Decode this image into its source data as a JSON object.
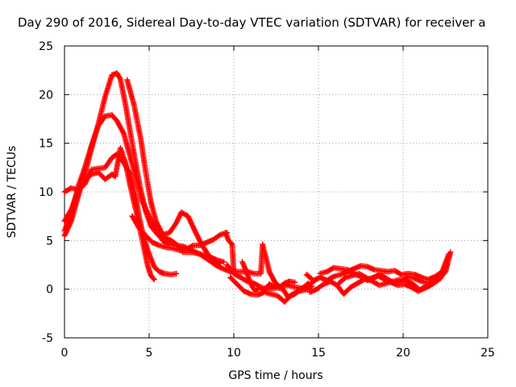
{
  "chart_data": {
    "type": "scatter",
    "title": "Day 290 of 2016, Sidereal Day-to-day VTEC variation (SDTVAR) for receiver a",
    "xlabel": "GPS time / hours",
    "ylabel": "SDTVAR / TECUs",
    "xlim": [
      0,
      25
    ],
    "ylim": [
      -5,
      25
    ],
    "x_ticks": [
      "0",
      "5",
      "10",
      "15",
      "20",
      "25"
    ],
    "y_ticks": [
      "-5",
      "0",
      "5",
      "10",
      "15",
      "20",
      "25"
    ],
    "grid": true,
    "marker": "plus",
    "color": "#ff0000",
    "series": [
      {
        "points": [
          [
            0.0,
            10.0
          ],
          [
            0.4,
            10.4
          ],
          [
            0.8,
            10.2
          ],
          [
            1.2,
            10.8
          ],
          [
            1.6,
            12.3
          ],
          [
            2.0,
            12.4
          ],
          [
            2.4,
            12.5
          ],
          [
            2.8,
            13.5
          ],
          [
            3.1,
            13.9
          ],
          [
            3.5,
            13.0
          ],
          [
            3.9,
            11.8
          ],
          [
            4.2,
            9.5
          ],
          [
            4.4,
            7.5
          ],
          [
            4.7,
            5.2
          ],
          [
            5.0,
            3.6
          ],
          [
            5.3,
            2.3
          ],
          [
            5.6,
            1.8
          ],
          [
            5.9,
            1.6
          ],
          [
            6.3,
            1.5
          ],
          [
            6.6,
            1.6
          ]
        ]
      },
      {
        "points": [
          [
            0.0,
            6.0
          ],
          [
            0.4,
            7.8
          ],
          [
            0.8,
            10.5
          ],
          [
            1.2,
            12.5
          ],
          [
            1.6,
            14.8
          ],
          [
            2.0,
            16.8
          ],
          [
            2.4,
            17.8
          ],
          [
            2.8,
            17.9
          ],
          [
            3.1,
            17.3
          ],
          [
            3.5,
            16.0
          ],
          [
            3.9,
            13.5
          ],
          [
            4.3,
            11.0
          ],
          [
            4.6,
            9.0
          ],
          [
            5.0,
            7.5
          ],
          [
            5.4,
            6.0
          ],
          [
            5.8,
            5.0
          ],
          [
            6.2,
            4.6
          ],
          [
            6.6,
            4.5
          ],
          [
            7.0,
            4.4
          ],
          [
            7.5,
            4.0
          ],
          [
            8.0,
            3.6
          ],
          [
            8.5,
            3.0
          ],
          [
            9.0,
            2.4
          ],
          [
            9.5,
            2.0
          ],
          [
            10.0,
            1.7
          ]
        ]
      },
      {
        "points": [
          [
            0.0,
            5.5
          ],
          [
            0.4,
            7.0
          ],
          [
            0.8,
            9.5
          ],
          [
            1.2,
            11.8
          ],
          [
            1.6,
            14.5
          ],
          [
            2.0,
            17.0
          ],
          [
            2.4,
            19.8
          ],
          [
            2.8,
            22.0
          ],
          [
            3.1,
            22.2
          ],
          [
            3.3,
            21.6
          ],
          [
            3.6,
            19.0
          ],
          [
            3.9,
            16.0
          ],
          [
            4.2,
            13.0
          ],
          [
            4.5,
            10.2
          ],
          [
            4.8,
            8.0
          ],
          [
            5.1,
            6.5
          ],
          [
            5.5,
            5.6
          ],
          [
            5.9,
            5.3
          ],
          [
            6.3,
            5.0
          ],
          [
            6.7,
            4.5
          ],
          [
            7.0,
            3.8
          ],
          [
            7.4,
            3.8
          ],
          [
            7.8,
            3.7
          ],
          [
            8.2,
            3.5
          ],
          [
            8.6,
            3.3
          ],
          [
            9.0,
            3.0
          ],
          [
            9.4,
            2.8
          ]
        ]
      },
      {
        "points": [
          [
            0.0,
            7.0
          ],
          [
            0.4,
            8.2
          ],
          [
            0.8,
            10.0
          ],
          [
            1.2,
            11.4
          ],
          [
            1.6,
            11.8
          ],
          [
            2.0,
            12.0
          ],
          [
            2.4,
            11.3
          ],
          [
            2.8,
            11.8
          ],
          [
            3.0,
            11.6
          ],
          [
            3.3,
            14.5
          ],
          [
            3.6,
            13.0
          ],
          [
            3.9,
            10.5
          ],
          [
            4.1,
            9.0
          ],
          [
            4.3,
            7.5
          ],
          [
            4.5,
            5.8
          ],
          [
            4.7,
            4.2
          ],
          [
            4.9,
            2.5
          ],
          [
            5.1,
            1.4
          ],
          [
            5.3,
            1.0
          ]
        ]
      },
      {
        "points": [
          [
            3.7,
            21.5
          ],
          [
            4.1,
            19.0
          ],
          [
            4.5,
            15.5
          ],
          [
            4.8,
            12.0
          ],
          [
            5.1,
            9.0
          ],
          [
            5.4,
            7.0
          ],
          [
            5.8,
            5.6
          ],
          [
            6.2,
            5.8
          ],
          [
            6.6,
            6.8
          ],
          [
            6.9,
            7.9
          ],
          [
            7.3,
            7.5
          ],
          [
            7.7,
            6.0
          ],
          [
            8.1,
            4.6
          ],
          [
            8.5,
            3.5
          ],
          [
            8.9,
            2.9
          ],
          [
            9.2,
            2.7
          ]
        ]
      },
      {
        "points": [
          [
            4.0,
            7.5
          ],
          [
            4.4,
            6.3
          ],
          [
            4.8,
            5.5
          ],
          [
            5.2,
            4.8
          ],
          [
            5.6,
            4.5
          ],
          [
            6.0,
            4.3
          ],
          [
            6.4,
            4.2
          ],
          [
            6.8,
            4.0
          ],
          [
            7.2,
            4.1
          ],
          [
            7.6,
            4.5
          ],
          [
            8.0,
            4.5
          ],
          [
            8.4,
            4.8
          ],
          [
            8.8,
            5.1
          ],
          [
            9.2,
            5.6
          ],
          [
            9.6,
            5.8
          ]
        ]
      },
      {
        "points": [
          [
            9.5,
            5.8
          ],
          [
            9.7,
            5.0
          ],
          [
            9.9,
            4.6
          ],
          [
            10.0,
            1.8
          ],
          [
            10.4,
            1.8
          ],
          [
            10.8,
            1.8
          ],
          [
            11.2,
            1.6
          ],
          [
            11.6,
            1.6
          ],
          [
            11.7,
            4.6
          ],
          [
            11.9,
            3.2
          ],
          [
            12.1,
            1.8
          ],
          [
            12.4,
            0.8
          ],
          [
            12.7,
            0.2
          ],
          [
            13.0,
            0.6
          ],
          [
            13.3,
            0.8
          ],
          [
            13.6,
            0.7
          ]
        ]
      },
      {
        "points": [
          [
            9.6,
            2.5
          ],
          [
            10.0,
            1.6
          ],
          [
            10.4,
            1.2
          ],
          [
            10.8,
            0.8
          ],
          [
            11.2,
            0.6
          ],
          [
            11.6,
            0.2
          ],
          [
            12.0,
            0.0
          ],
          [
            12.4,
            0.1
          ],
          [
            12.8,
            0.3
          ],
          [
            13.2,
            0.4
          ],
          [
            13.6,
            0.2
          ],
          [
            14.0,
            0.1
          ],
          [
            14.4,
            0.4
          ],
          [
            14.8,
            0.9
          ]
        ]
      },
      {
        "points": [
          [
            9.8,
            1.2
          ],
          [
            10.2,
            0.5
          ],
          [
            10.6,
            -0.2
          ],
          [
            11.0,
            -0.5
          ],
          [
            11.4,
            -0.6
          ],
          [
            11.8,
            -0.3
          ],
          [
            12.2,
            -0.5
          ],
          [
            12.6,
            -0.7
          ],
          [
            13.0,
            -1.3
          ],
          [
            13.4,
            -0.6
          ],
          [
            13.8,
            -0.2
          ],
          [
            14.2,
            -0.1
          ],
          [
            14.6,
            0.3
          ]
        ]
      },
      {
        "points": [
          [
            10.5,
            2.8
          ],
          [
            10.7,
            2.0
          ],
          [
            10.9,
            1.0
          ],
          [
            11.1,
            0.2
          ],
          [
            11.3,
            -0.2
          ],
          [
            11.5,
            0.2
          ],
          [
            11.8,
            -0.1
          ],
          [
            12.1,
            0.5
          ],
          [
            12.5,
            0.2
          ],
          [
            12.9,
            0.0
          ],
          [
            13.2,
            -0.8
          ],
          [
            13.6,
            -0.5
          ],
          [
            14.0,
            0.0
          ],
          [
            14.4,
            0.6
          ]
        ]
      },
      {
        "points": [
          [
            14.3,
            1.5
          ],
          [
            14.7,
            0.9
          ],
          [
            15.1,
            1.2
          ],
          [
            15.5,
            0.9
          ],
          [
            15.9,
            1.3
          ],
          [
            16.3,
            1.5
          ],
          [
            16.7,
            1.8
          ],
          [
            17.1,
            2.1
          ],
          [
            17.5,
            2.4
          ],
          [
            17.9,
            2.3
          ],
          [
            18.3,
            2.0
          ],
          [
            18.7,
            1.9
          ],
          [
            19.1,
            1.8
          ],
          [
            19.5,
            1.9
          ],
          [
            19.9,
            1.5
          ],
          [
            20.3,
            1.6
          ],
          [
            20.7,
            1.5
          ],
          [
            21.1,
            1.2
          ],
          [
            21.5,
            1.0
          ],
          [
            21.9,
            1.3
          ],
          [
            22.3,
            1.8
          ],
          [
            22.7,
            3.6
          ]
        ]
      },
      {
        "points": [
          [
            14.5,
            -0.3
          ],
          [
            14.9,
            0.0
          ],
          [
            15.3,
            0.5
          ],
          [
            15.7,
            0.8
          ],
          [
            16.1,
            0.4
          ],
          [
            16.5,
            -0.5
          ],
          [
            16.9,
            0.2
          ],
          [
            17.3,
            0.6
          ],
          [
            17.7,
            1.0
          ],
          [
            18.1,
            1.1
          ],
          [
            18.5,
            1.4
          ],
          [
            18.9,
            1.0
          ],
          [
            19.3,
            0.7
          ],
          [
            19.7,
            0.4
          ],
          [
            20.1,
            0.5
          ],
          [
            20.5,
            0.2
          ],
          [
            20.9,
            -0.2
          ],
          [
            21.3,
            0.3
          ],
          [
            21.7,
            0.5
          ],
          [
            22.1,
            1.0
          ],
          [
            22.5,
            1.8
          ],
          [
            22.8,
            3.8
          ]
        ]
      },
      {
        "points": [
          [
            15.1,
            1.6
          ],
          [
            15.5,
            1.8
          ],
          [
            15.9,
            2.2
          ],
          [
            16.3,
            2.1
          ],
          [
            16.7,
            2.0
          ],
          [
            17.1,
            1.6
          ],
          [
            17.5,
            1.3
          ],
          [
            17.9,
            0.9
          ],
          [
            18.3,
            1.2
          ],
          [
            18.7,
            1.5
          ],
          [
            19.1,
            1.0
          ],
          [
            19.5,
            0.6
          ],
          [
            19.9,
            0.8
          ],
          [
            20.3,
            1.3
          ],
          [
            20.7,
            1.1
          ],
          [
            21.1,
            0.8
          ],
          [
            21.5,
            0.6
          ],
          [
            21.9,
            0.9
          ],
          [
            22.3,
            1.4
          ]
        ]
      },
      {
        "points": [
          [
            16.2,
            0.6
          ],
          [
            16.6,
            1.2
          ],
          [
            17.0,
            1.4
          ],
          [
            17.4,
            1.6
          ],
          [
            17.8,
            1.2
          ],
          [
            18.2,
            0.8
          ],
          [
            18.6,
            0.4
          ],
          [
            19.0,
            0.6
          ],
          [
            19.4,
            0.8
          ],
          [
            19.8,
            1.0
          ],
          [
            20.2,
            0.9
          ],
          [
            20.6,
            0.5
          ],
          [
            21.0,
            -0.1
          ],
          [
            21.4,
            0.2
          ],
          [
            21.8,
            0.6
          ],
          [
            22.2,
            1.1
          ],
          [
            22.6,
            2.5
          ]
        ]
      }
    ]
  }
}
